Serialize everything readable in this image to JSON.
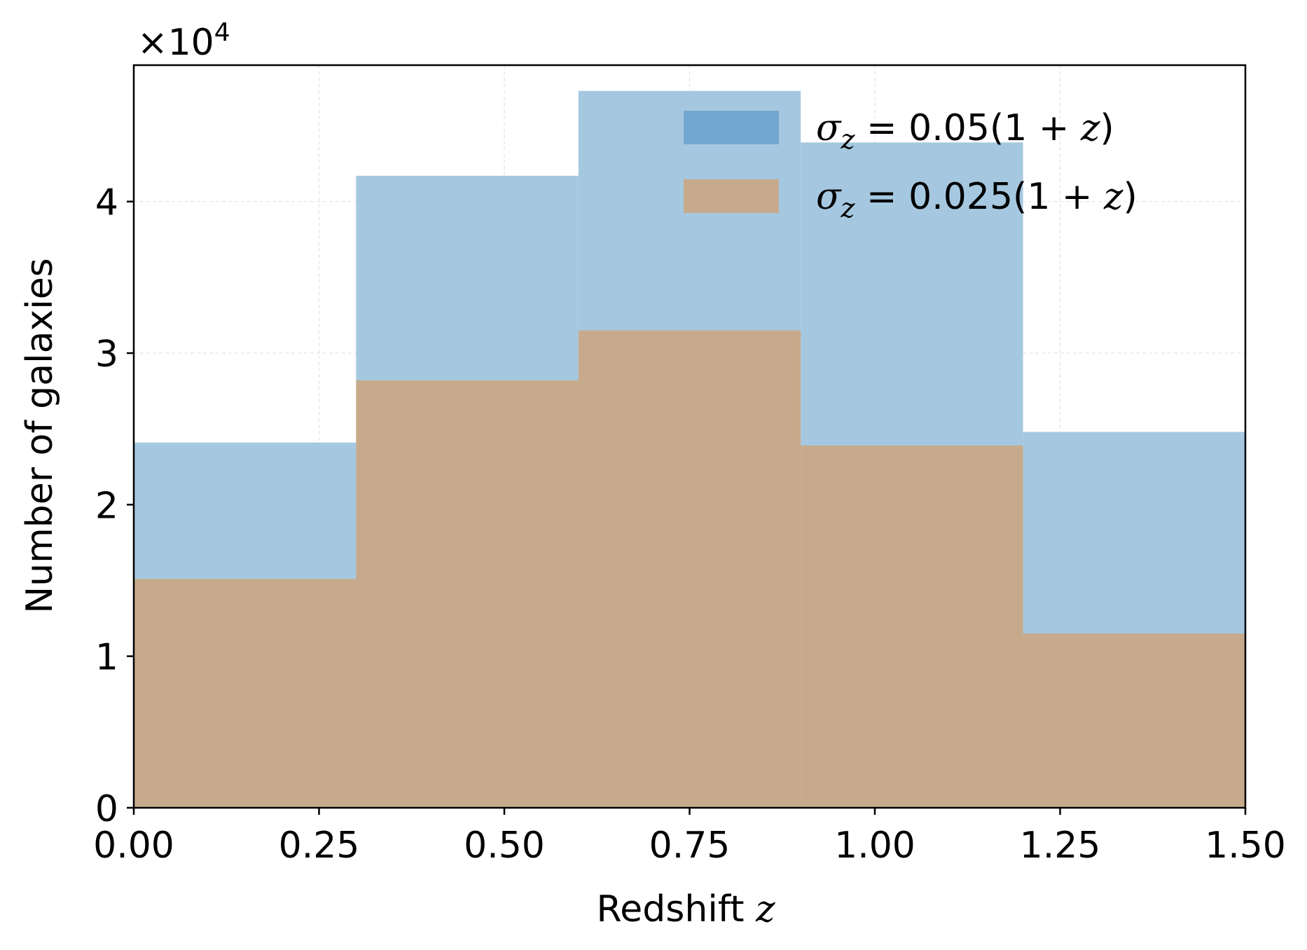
{
  "chart_data": {
    "type": "bar",
    "bin_edges": [
      0.0,
      0.3,
      0.6,
      0.9,
      1.2,
      1.5
    ],
    "series": [
      {
        "name": "σ_z = 0.05(1 + z)",
        "label_parts": {
          "sym": "σ",
          "sub": "z",
          "rest": " = 0.05(1 + ",
          "var": "z",
          "close": ")"
        },
        "values": [
          24100,
          41700,
          47300,
          43900,
          24800
        ],
        "color": "#a5c8e0",
        "legend_color": "#72a7cf"
      },
      {
        "name": "σ_z = 0.025(1 + z)",
        "label_parts": {
          "sym": "σ",
          "sub": "z",
          "rest": " = 0.025(1 + ",
          "var": "z",
          "close": ")"
        },
        "values": [
          15100,
          28200,
          31500,
          23900,
          11500
        ],
        "color": "#c7aa8c",
        "legend_color": "#c7aa8c"
      }
    ],
    "xlabel": {
      "text": "Redshift ",
      "var": "z"
    },
    "ylabel": "Number of galaxies",
    "offset_text": {
      "base": "×10",
      "exp": "4"
    },
    "xlim": [
      0.0,
      1.5
    ],
    "ylim": [
      0,
      49000
    ],
    "xticks": [
      0.0,
      0.25,
      0.5,
      0.75,
      1.0,
      1.25,
      1.5
    ],
    "xtick_labels": [
      "0.00",
      "0.25",
      "0.50",
      "0.75",
      "1.00",
      "1.25",
      "1.50"
    ],
    "yticks": [
      0,
      10000,
      20000,
      30000,
      40000
    ],
    "ytick_labels": [
      "0",
      "1",
      "2",
      "3",
      "4"
    ],
    "grid": true,
    "legend_position": "upper-right"
  }
}
